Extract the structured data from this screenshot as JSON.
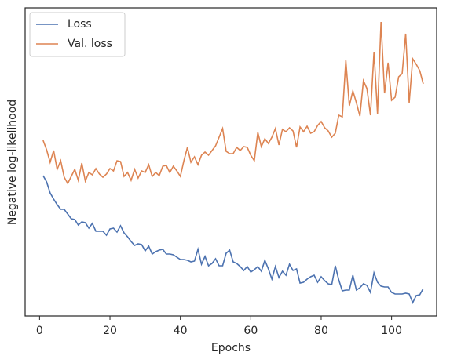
{
  "chart_data": {
    "type": "line",
    "xlabel": "Epochs",
    "ylabel": "Negative log-likelihood",
    "x": [
      1,
      2,
      3,
      4,
      5,
      6,
      7,
      8,
      9,
      10,
      11,
      12,
      13,
      14,
      15,
      16,
      17,
      18,
      19,
      20,
      21,
      22,
      23,
      24,
      25,
      26,
      27,
      28,
      29,
      30,
      31,
      32,
      33,
      34,
      35,
      36,
      37,
      38,
      39,
      40,
      41,
      42,
      43,
      44,
      45,
      46,
      47,
      48,
      49,
      50,
      51,
      52,
      53,
      54,
      55,
      56,
      57,
      58,
      59,
      60,
      61,
      62,
      63,
      64,
      65,
      66,
      67,
      68,
      69,
      70,
      71,
      72,
      73,
      74,
      75,
      76,
      77,
      78,
      79,
      80,
      81,
      82,
      83,
      84,
      85,
      86,
      87,
      88,
      89,
      90,
      91,
      92,
      93,
      94,
      95,
      96,
      97,
      98,
      99,
      100,
      101,
      102,
      103,
      104,
      105,
      106,
      107,
      108,
      109
    ],
    "series": [
      {
        "name": "Loss",
        "color": "#4c72b0",
        "values": [
          179,
          171,
          157,
          149,
          142,
          136,
          136,
          130,
          124,
          123,
          116,
          120,
          119,
          112,
          118,
          108,
          108,
          108,
          103,
          111,
          112,
          107,
          115,
          106,
          101,
          95,
          90,
          92,
          91,
          83,
          89,
          79,
          82,
          84,
          85,
          79,
          79,
          78,
          75,
          72,
          72,
          71,
          69,
          70,
          85,
          66,
          76,
          64,
          67,
          73,
          64,
          64,
          80,
          84,
          69,
          67,
          63,
          58,
          63,
          56,
          59,
          63,
          57,
          71,
          60,
          47,
          63,
          49,
          57,
          52,
          66,
          58,
          60,
          42,
          43,
          47,
          50,
          52,
          43,
          50,
          45,
          41,
          40,
          64,
          46,
          32,
          33,
          33,
          52,
          33,
          36,
          41,
          39,
          30,
          55,
          43,
          38,
          37,
          37,
          30,
          28,
          28,
          28,
          29,
          28,
          17,
          26,
          27,
          35
        ]
      },
      {
        "name": "Val. loss",
        "color": "#dd8452",
        "values": [
          224,
          212,
          196,
          211,
          187,
          198,
          177,
          169,
          178,
          187,
          173,
          195,
          172,
          183,
          180,
          188,
          181,
          177,
          181,
          188,
          185,
          198,
          197,
          178,
          183,
          173,
          187,
          176,
          185,
          183,
          193,
          178,
          183,
          179,
          191,
          192,
          183,
          191,
          185,
          178,
          198,
          215,
          196,
          203,
          193,
          205,
          209,
          205,
          211,
          217,
          228,
          239,
          210,
          207,
          207,
          215,
          211,
          216,
          215,
          205,
          198,
          234,
          216,
          226,
          220,
          228,
          239,
          218,
          238,
          235,
          240,
          236,
          215,
          241,
          235,
          242,
          233,
          235,
          243,
          248,
          240,
          236,
          228,
          233,
          256,
          254,
          326,
          268,
          287,
          272,
          255,
          300,
          290,
          256,
          337,
          258,
          375,
          284,
          323,
          275,
          279,
          305,
          309,
          360,
          272,
          328,
          321,
          313,
          296
        ]
      }
    ],
    "xlim": [
      -4.1,
      112.8
    ],
    "xticks": [
      0,
      20,
      40,
      60,
      80,
      100
    ],
    "ylim": [
      0,
      393
    ],
    "legend": "upper left"
  }
}
